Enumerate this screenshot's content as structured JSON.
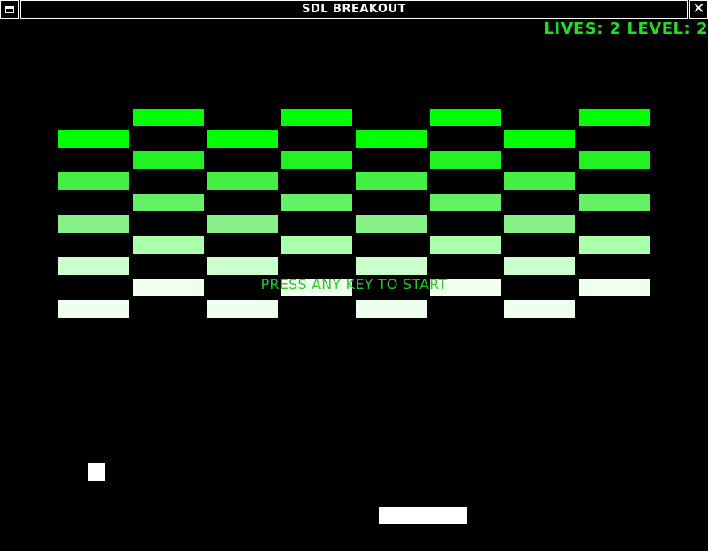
{
  "window": {
    "title": "SDL BREAKOUT",
    "close_glyph": "✕",
    "menu_icon": "window-menu-icon",
    "close_icon": "close-icon"
  },
  "hud": {
    "lives_label": "LIVES:",
    "lives": "2",
    "level_label": "LEVEL:",
    "level": "2",
    "color": "#22dd22"
  },
  "game": {
    "prompt": "PRESS ANY KEY TO START",
    "prompt_color": "#22cc22",
    "ball_color": "#ffffff",
    "paddle_color": "#ffffff",
    "brick_row_colors": [
      "#00ff00",
      "#22f022",
      "#44f044",
      "#66f066",
      "#88f088",
      "#aaffaa",
      "#ccffcc",
      "#eeffee"
    ],
    "brick_pattern": "checkerboard, 8 columns x 10 rows"
  }
}
